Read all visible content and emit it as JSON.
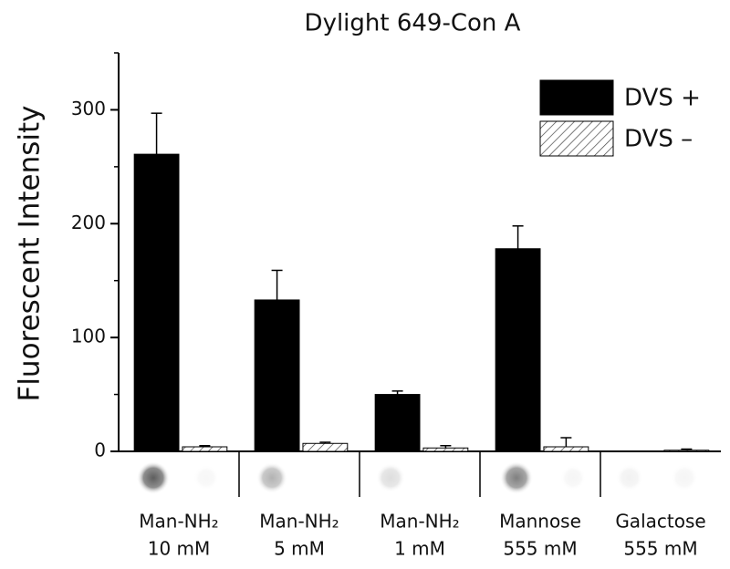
{
  "chart_data": {
    "type": "bar",
    "title": "Dylight 649-Con A",
    "y_label": "Fluorescent Intensity",
    "categories": [
      [
        "Man-NH₂",
        "10 mM"
      ],
      [
        "Man-NH₂",
        "5 mM"
      ],
      [
        "Man-NH₂",
        "1 mM"
      ],
      [
        "Mannose",
        "555 mM"
      ],
      [
        "Galactose",
        "555 mM"
      ]
    ],
    "series": [
      {
        "name": "DVS +",
        "color": "#000000",
        "hatch": false,
        "values": [
          261,
          133,
          50,
          178,
          0
        ],
        "errors": [
          36,
          26,
          3,
          20,
          0
        ]
      },
      {
        "name": "DVS –",
        "color": "#ffffff",
        "hatch": true,
        "values": [
          4,
          7,
          3,
          4,
          1
        ],
        "errors": [
          1,
          1,
          2,
          8,
          1
        ]
      }
    ],
    "ylim": [
      0,
      350
    ],
    "yticks": [
      0,
      100,
      200,
      300
    ],
    "legend": "top-right"
  }
}
